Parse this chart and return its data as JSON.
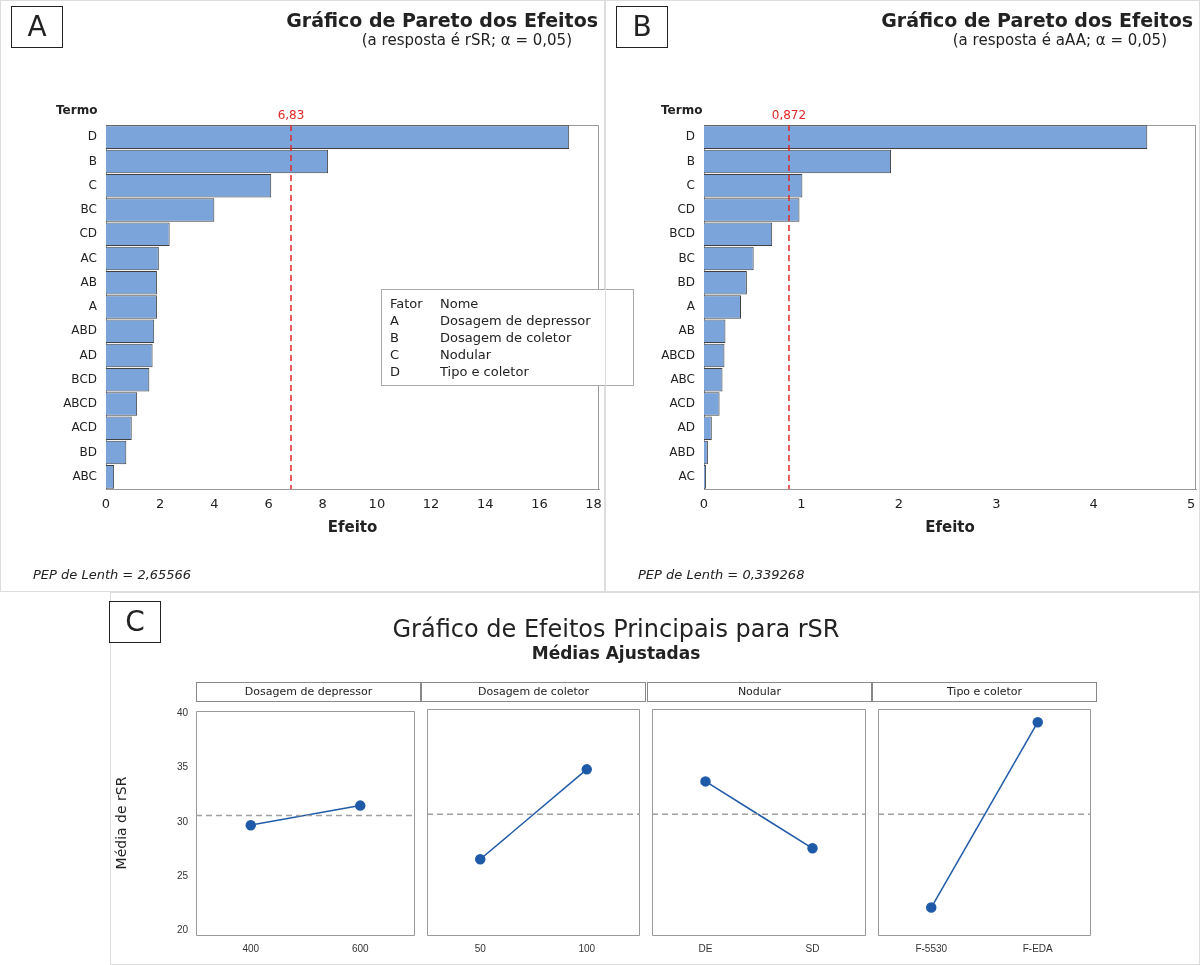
{
  "chart_data": [
    {
      "type": "bar",
      "orientation": "horizontal",
      "title": "Gráfico de Pareto dos Efeitos",
      "subtitle": "(a resposta é  rSR; α = 0,05)",
      "xlabel": "Efeito",
      "ylabel": "Termo",
      "categories": [
        "D",
        "B",
        "C",
        "BC",
        "CD",
        "AC",
        "AB",
        "A",
        "ABD",
        "AD",
        "BCD",
        "ABCD",
        "ACD",
        "BD",
        "ABC"
      ],
      "values": [
        17.1,
        8.2,
        6.1,
        4.0,
        2.35,
        1.95,
        1.88,
        1.88,
        1.78,
        1.72,
        1.6,
        1.15,
        0.95,
        0.75,
        0.3
      ],
      "color": "#7ba4da",
      "xlim": [
        0,
        18.2
      ],
      "xticks": [
        0,
        2,
        4,
        6,
        8,
        10,
        12,
        14,
        16,
        18
      ],
      "grid": false,
      "legend": false,
      "ref_lines": [
        {
          "axis": "x",
          "value": 6.83,
          "label": "6,83",
          "color": "#e02828",
          "line_style": "dashed"
        }
      ],
      "annotations": [
        "A",
        "Fator",
        "Nome",
        "A",
        "Dosagem de depressor",
        "B",
        "Dosagem de coletor",
        "C",
        "Nodular",
        "D",
        "Tipo e coletor",
        "PEP de Lenth = 2,65566"
      ]
    },
    {
      "type": "bar",
      "orientation": "horizontal",
      "title": "Gráfico de Pareto dos Efeitos",
      "subtitle": "(a resposta é  aAA; α = 0,05)",
      "xlabel": "Efeito",
      "ylabel": "Termo",
      "categories": [
        "D",
        "B",
        "C",
        "CD",
        "BCD",
        "BC",
        "BD",
        "A",
        "AB",
        "ABCD",
        "ABC",
        "ACD",
        "AD",
        "ABD",
        "AC"
      ],
      "values": [
        4.55,
        1.92,
        1.01,
        0.98,
        0.7,
        0.51,
        0.44,
        0.38,
        0.22,
        0.21,
        0.19,
        0.16,
        0.08,
        0.04,
        0.02
      ],
      "color": "#7ba4da",
      "xlim": [
        0,
        5.05
      ],
      "xticks": [
        0,
        1,
        2,
        3,
        4,
        5
      ],
      "grid": false,
      "legend": false,
      "ref_lines": [
        {
          "axis": "x",
          "value": 0.872,
          "label": "0,872",
          "color": "#e02828",
          "line_style": "dashed"
        }
      ],
      "annotations": [
        "B",
        "PEP de Lenth = 0,339268"
      ]
    },
    {
      "type": "other",
      "title": "Gráfico de Efeitos Principais para rSR",
      "subtitle": "Médias Ajustadas",
      "annotations": [
        "C"
      ]
    },
    {
      "type": "line",
      "title": "Dosagem de depressor",
      "ylabel": "Média de rSR",
      "categories": [
        "400",
        "600"
      ],
      "values": [
        29.7,
        31.5
      ],
      "color": "#1f5aa8",
      "marker": "circle",
      "line_style": "solid",
      "ylim": [
        19.6,
        40.2
      ],
      "yticks": [
        20,
        25,
        30,
        35,
        40
      ],
      "grid": false,
      "legend": false,
      "ref_lines": [
        {
          "axis": "y",
          "value": 30.6,
          "color": "#a0a0a0",
          "line_style": "dashed"
        }
      ]
    },
    {
      "type": "line",
      "title": "Dosagem de coletor",
      "categories": [
        "50",
        "100"
      ],
      "values": [
        26.5,
        34.7
      ],
      "color": "#1f5aa8",
      "marker": "circle",
      "line_style": "solid",
      "ylim": [
        19.6,
        40.2
      ],
      "yticks": [
        20,
        25,
        30,
        35,
        40
      ],
      "tick_labels": "x",
      "grid": false,
      "legend": false,
      "ref_lines": [
        {
          "axis": "y",
          "value": 30.6,
          "color": "#a0a0a0",
          "line_style": "dashed"
        }
      ]
    },
    {
      "type": "line",
      "title": "Nodular",
      "categories": [
        "DE",
        "SD"
      ],
      "values": [
        33.6,
        27.5
      ],
      "color": "#1f5aa8",
      "marker": "circle",
      "line_style": "solid",
      "ylim": [
        19.6,
        40.2
      ],
      "yticks": [
        20,
        25,
        30,
        35,
        40
      ],
      "tick_labels": "x",
      "grid": false,
      "legend": false,
      "ref_lines": [
        {
          "axis": "y",
          "value": 30.6,
          "color": "#a0a0a0",
          "line_style": "dashed"
        }
      ]
    },
    {
      "type": "line",
      "title": "Tipo e coletor",
      "categories": [
        "F-5530",
        "F-EDA"
      ],
      "values": [
        22.1,
        39.0
      ],
      "color": "#1f5aa8",
      "marker": "circle",
      "line_style": "solid",
      "ylim": [
        19.6,
        40.2
      ],
      "yticks": [
        20,
        25,
        30,
        35,
        40
      ],
      "tick_labels": "x",
      "grid": false,
      "legend": false,
      "ref_lines": [
        {
          "axis": "y",
          "value": 30.6,
          "color": "#a0a0a0",
          "line_style": "dashed"
        }
      ]
    }
  ]
}
